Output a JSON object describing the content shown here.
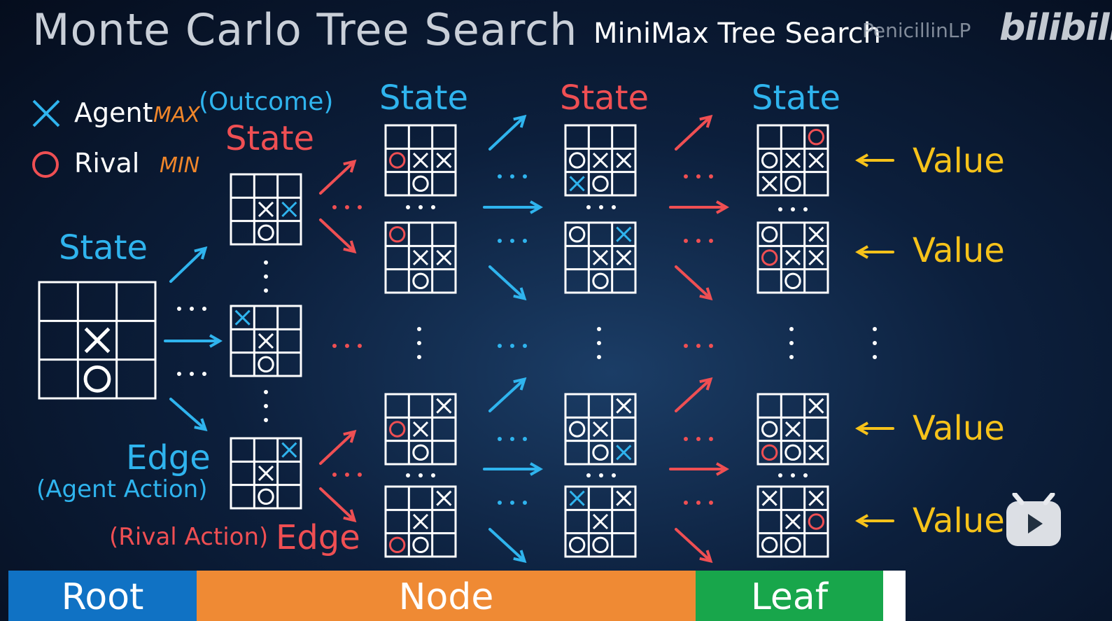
{
  "header": {
    "title": "Monte Carlo Tree Search",
    "subtitle": "MiniMax Tree Search",
    "watermark": "PenicillinLP",
    "brand": "bilibili"
  },
  "legend": {
    "agent_label": "Agent",
    "agent_role": "MAX",
    "rival_label": "Rival",
    "rival_role": "MIN"
  },
  "labels": {
    "root_state": "State",
    "outcome": "(Outcome)",
    "outcome_state": "State",
    "state_col1": "State",
    "state_col2": "State",
    "state_col3": "State",
    "agent_edge": "Edge",
    "agent_action": "(Agent Action)",
    "rival_action": "(Rival Action)",
    "rival_edge": "Edge",
    "value": "Value"
  },
  "bottom_bar": {
    "root": "Root",
    "node": "Node",
    "leaf": "Leaf",
    "root_color": "#1072c4",
    "node_color": "#ef8a34",
    "leaf_color": "#18a64b"
  },
  "colors": {
    "agent": "#2fb4ee",
    "rival": "#ef4f53",
    "value": "#f6c21a",
    "role": "#f0862a",
    "play_button": "play-icon"
  },
  "boards": {
    "root": [
      "",
      "",
      "",
      "",
      "X",
      "",
      "",
      "O",
      ""
    ],
    "agent_moves": [
      [
        "",
        "",
        "",
        "",
        "X",
        "x",
        "",
        "O",
        ""
      ],
      [
        "x",
        "",
        "",
        "",
        "X",
        "",
        "",
        "O",
        ""
      ],
      [
        "",
        "",
        "x",
        "",
        "X",
        "",
        "",
        "O",
        ""
      ]
    ],
    "col1": [
      [
        "",
        "",
        "",
        "o",
        "X",
        "X",
        "",
        "O",
        ""
      ],
      [
        "o",
        "",
        "",
        "",
        "X",
        "X",
        "",
        "O",
        ""
      ],
      [
        "",
        "",
        "X",
        "o",
        "X",
        "",
        "",
        "O",
        ""
      ],
      [
        "",
        "",
        "X",
        "",
        "X",
        "",
        "o",
        "O",
        ""
      ]
    ],
    "col2": [
      [
        "",
        "",
        "",
        "O",
        "X",
        "X",
        "x",
        "O",
        ""
      ],
      [
        "O",
        "",
        "x",
        "",
        "X",
        "X",
        "",
        "O",
        ""
      ],
      [
        "",
        "",
        "X",
        "O",
        "X",
        "",
        "",
        "O",
        "x"
      ],
      [
        "x",
        "",
        "X",
        "",
        "X",
        "",
        "O",
        "O",
        ""
      ]
    ],
    "col3": [
      [
        "",
        "",
        "o",
        "O",
        "X",
        "X",
        "X",
        "O",
        ""
      ],
      [
        "O",
        "",
        "X",
        "o",
        "X",
        "X",
        "",
        "O",
        ""
      ],
      [
        "",
        "",
        "X",
        "O",
        "X",
        "",
        "o",
        "O",
        "X"
      ],
      [
        "X",
        "",
        "X",
        "",
        "X",
        "o",
        "O",
        "O",
        ""
      ]
    ]
  }
}
